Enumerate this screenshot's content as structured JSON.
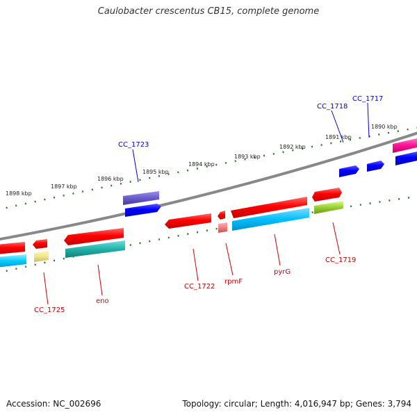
{
  "title": "Caulobacter crescentus CB15, complete genome",
  "footer": {
    "accession": "Accession: NC_002696",
    "stats": "Topology: circular; Length: 4,016,947 bp; Genes: 3,794"
  },
  "scale_labels": [
    "1898 kbp",
    "1897 kbp",
    "1896 kbp",
    "1895 kbp",
    "1894 kbp",
    "1893 kbp",
    "1892 kbp",
    "1891 kbp",
    "1890 kbp"
  ],
  "gene_labels": {
    "forward": [
      "CC_1723",
      "CC_1718",
      "CC_1717"
    ],
    "reverse": [
      "CC_1725",
      "eno",
      "CC_1722",
      "rpmF",
      "pyrG",
      "CC_1719"
    ]
  },
  "colors": {
    "forward_label": "#0000cc",
    "reverse_label": "#cc0000",
    "backbone": "#888888",
    "tick": "#2a7a2a"
  }
}
